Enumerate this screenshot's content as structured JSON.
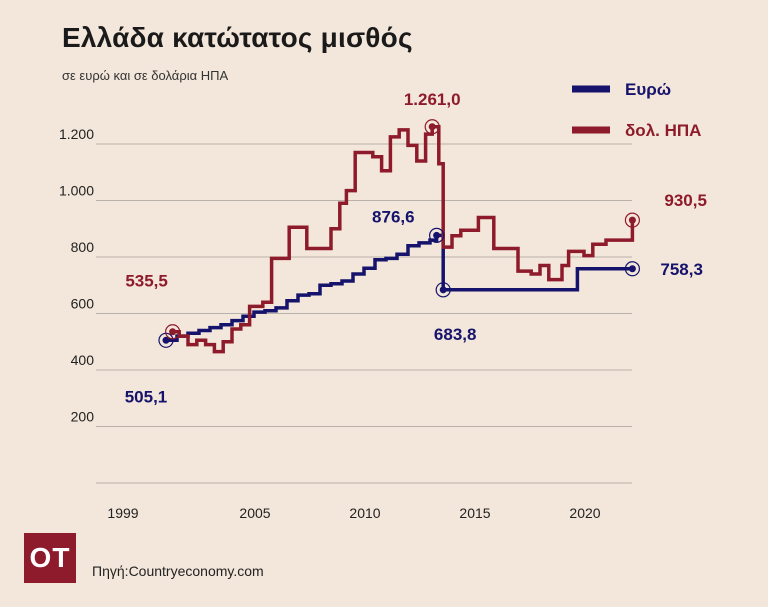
{
  "header": {
    "title": "Ελλάδα κατώτατος μισθός",
    "subtitle": "σε ευρώ και σε δολάρια ΗΠΑ"
  },
  "footer": {
    "logo_text": "OT",
    "source": "Πηγή:Countryeconomy.com"
  },
  "colors": {
    "euro": "#15136b",
    "usd": "#8e1b2b",
    "grid": "#b9b2ab",
    "background": "#f3e6da"
  },
  "chart_data": {
    "type": "line",
    "step": true,
    "grid": "horizontal",
    "legend_position": "top-right",
    "xlim": [
      1998.0,
      2023.0
    ],
    "ylim": [
      0,
      1300
    ],
    "x_ticks": [
      1999,
      2005,
      2010,
      2015,
      2020
    ],
    "x_tick_labels": [
      "1999",
      "2005",
      "2010",
      "2015",
      "2020"
    ],
    "y_ticks": [
      200,
      400,
      600,
      800,
      1000,
      1200
    ],
    "y_tick_labels": [
      "200",
      "400",
      "600",
      "800",
      "1.000",
      "1.200"
    ],
    "series": [
      {
        "name": "Ευρώ",
        "color": "#15136b",
        "points": [
          [
            2001.0,
            505.1
          ],
          [
            2001.5,
            520
          ],
          [
            2002.0,
            530
          ],
          [
            2002.5,
            540
          ],
          [
            2003.0,
            550
          ],
          [
            2003.5,
            560
          ],
          [
            2004.0,
            575
          ],
          [
            2004.5,
            590
          ],
          [
            2005.0,
            605
          ],
          [
            2005.5,
            610
          ],
          [
            2006.0,
            620
          ],
          [
            2006.5,
            645
          ],
          [
            2007.0,
            665
          ],
          [
            2007.5,
            670
          ],
          [
            2008.0,
            700
          ],
          [
            2008.5,
            705
          ],
          [
            2009.0,
            715
          ],
          [
            2009.5,
            740
          ],
          [
            2010.0,
            760
          ],
          [
            2010.5,
            790
          ],
          [
            2011.0,
            795
          ],
          [
            2011.5,
            810
          ],
          [
            2012.0,
            840
          ],
          [
            2012.5,
            850
          ],
          [
            2013.0,
            860
          ],
          [
            2013.3,
            876.6
          ],
          [
            2013.6,
            683.8
          ],
          [
            2014.0,
            683.8
          ],
          [
            2015.0,
            683.8
          ],
          [
            2016.0,
            683.8
          ],
          [
            2017.0,
            683.8
          ],
          [
            2018.0,
            683.8
          ],
          [
            2019.0,
            683.8
          ],
          [
            2019.7,
            758.3
          ],
          [
            2020.5,
            758.3
          ],
          [
            2021.5,
            758.3
          ],
          [
            2022.2,
            758.3
          ]
        ]
      },
      {
        "name": "δολ. ΗΠΑ",
        "color": "#8e1b2b",
        "points": [
          [
            2001.3,
            535.5
          ],
          [
            2001.6,
            520
          ],
          [
            2002.0,
            490
          ],
          [
            2002.4,
            505
          ],
          [
            2002.8,
            490
          ],
          [
            2003.2,
            465
          ],
          [
            2003.6,
            500
          ],
          [
            2004.0,
            545
          ],
          [
            2004.4,
            560
          ],
          [
            2004.8,
            625
          ],
          [
            2005.4,
            640
          ],
          [
            2005.8,
            795
          ],
          [
            2006.6,
            905
          ],
          [
            2007.4,
            830
          ],
          [
            2008.2,
            830
          ],
          [
            2008.5,
            900
          ],
          [
            2008.9,
            990
          ],
          [
            2009.2,
            1035
          ],
          [
            2009.6,
            1170
          ],
          [
            2010.4,
            1155
          ],
          [
            2010.8,
            1105
          ],
          [
            2011.2,
            1225
          ],
          [
            2011.6,
            1250
          ],
          [
            2012.0,
            1195
          ],
          [
            2012.4,
            1140
          ],
          [
            2012.8,
            1235
          ],
          [
            2013.1,
            1261.0
          ],
          [
            2013.4,
            1130
          ],
          [
            2013.6,
            835
          ],
          [
            2014.0,
            875
          ],
          [
            2014.4,
            895
          ],
          [
            2014.8,
            895
          ],
          [
            2015.2,
            940
          ],
          [
            2015.9,
            830
          ],
          [
            2016.6,
            830
          ],
          [
            2017.0,
            750
          ],
          [
            2017.6,
            740
          ],
          [
            2018.0,
            770
          ],
          [
            2018.4,
            720
          ],
          [
            2019.0,
            770
          ],
          [
            2019.3,
            820
          ],
          [
            2020.0,
            805
          ],
          [
            2020.4,
            845
          ],
          [
            2021.0,
            860
          ],
          [
            2021.6,
            860
          ],
          [
            2022.2,
            930.5
          ]
        ]
      }
    ],
    "annotations": [
      {
        "text": "505,1",
        "series": "Ευρώ",
        "x": 2001.0,
        "y": 505.1
      },
      {
        "text": "876,6",
        "series": "Ευρώ",
        "x": 2013.3,
        "y": 876.6
      },
      {
        "text": "683,8",
        "series": "Ευρώ",
        "x": 2013.6,
        "y": 683.8
      },
      {
        "text": "758,3",
        "series": "Ευρώ",
        "x": 2022.2,
        "y": 758.3
      },
      {
        "text": "535,5",
        "series": "δολ. ΗΠΑ",
        "x": 2001.3,
        "y": 535.5
      },
      {
        "text": "1.261,0",
        "series": "δολ. ΗΠΑ",
        "x": 2013.1,
        "y": 1261.0
      },
      {
        "text": "930,5",
        "series": "δολ. ΗΠΑ",
        "x": 2022.2,
        "y": 930.5
      }
    ]
  }
}
